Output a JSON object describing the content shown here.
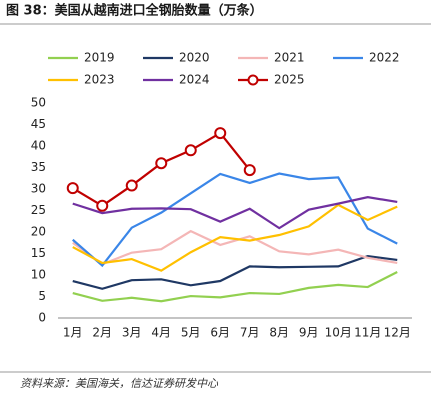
{
  "chart_data": {
    "type": "line",
    "title": "图 38：美国从越南进口全钢胎数量（万条）",
    "source": "资料来源：美国海关，信达证券研发中心",
    "categories": [
      "1月",
      "2月",
      "3月",
      "4月",
      "5月",
      "6月",
      "7月",
      "8月",
      "9月",
      "10月",
      "11月",
      "12月"
    ],
    "ylim": [
      0,
      50
    ],
    "yticks": [
      0,
      5,
      10,
      15,
      20,
      25,
      30,
      35,
      40,
      45,
      50
    ],
    "grid": false,
    "series": [
      {
        "name": "2019",
        "color": "#92d050",
        "values": [
          5.8,
          4.0,
          4.7,
          3.9,
          5.1,
          4.8,
          5.8,
          5.6,
          7.0,
          7.7,
          7.2,
          10.7
        ]
      },
      {
        "name": "2020",
        "color": "#1f3864",
        "values": [
          8.6,
          6.8,
          8.8,
          9.0,
          7.6,
          8.6,
          12.0,
          11.8,
          11.9,
          12.0,
          14.4,
          13.5
        ]
      },
      {
        "name": "2021",
        "color": "#f4b6b6",
        "values": [
          17.5,
          12.5,
          15.2,
          16.0,
          20.2,
          17.0,
          19.0,
          15.5,
          14.8,
          15.9,
          14.0,
          12.8
        ]
      },
      {
        "name": "2022",
        "color": "#3a86e8",
        "values": [
          18.2,
          12.2,
          21.0,
          24.5,
          29.0,
          33.5,
          31.4,
          33.6,
          32.3,
          32.7,
          20.8,
          17.3
        ]
      },
      {
        "name": "2023",
        "color": "#ffc000",
        "values": [
          16.5,
          12.8,
          13.7,
          11.0,
          15.3,
          18.8,
          18.0,
          19.3,
          21.3,
          26.3,
          22.8,
          25.9
        ]
      },
      {
        "name": "2024",
        "color": "#7030a0",
        "values": [
          26.6,
          24.4,
          25.4,
          25.5,
          25.3,
          22.4,
          25.4,
          20.9,
          25.2,
          26.6,
          28.1,
          27.0
        ]
      },
      {
        "name": "2025",
        "color": "#c00000",
        "marker": "circle",
        "values": [
          30.2,
          26.1,
          30.8,
          36.0,
          39.0,
          43.0,
          34.4,
          null,
          null,
          null,
          null,
          null
        ]
      }
    ]
  }
}
